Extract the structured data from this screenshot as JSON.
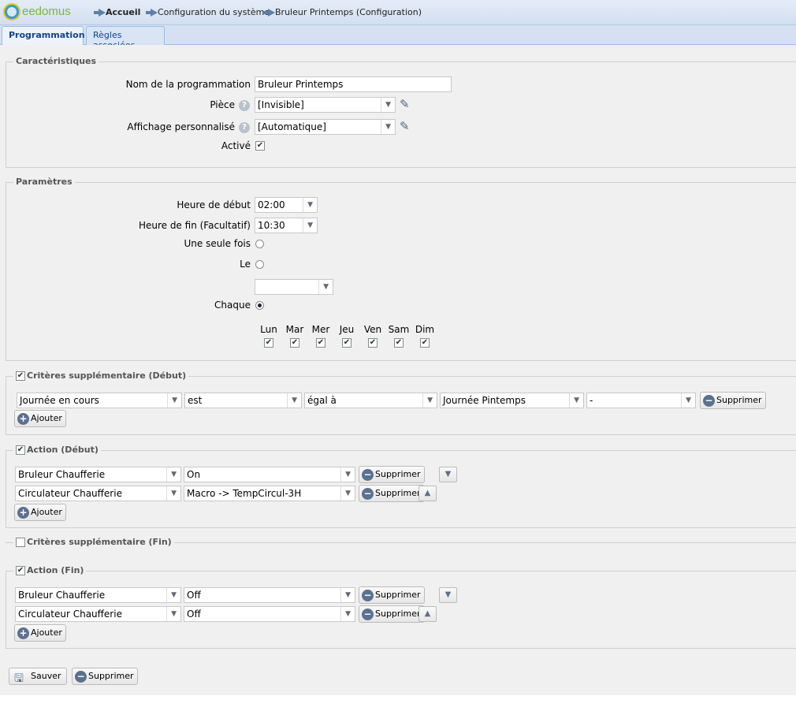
{
  "header": {
    "brand": "eedomus",
    "breadcrumb": [
      "Accueil",
      "Configuration du système",
      "Bruleur Printemps (Configuration)"
    ]
  },
  "tabs": [
    {
      "label": "Programmation",
      "active": true
    },
    {
      "label": "Règles associées",
      "active": false
    }
  ],
  "caracteristiques": {
    "legend": "Caractéristiques",
    "nom_label": "Nom de la programmation",
    "nom_value": "Bruleur Printemps",
    "piece_label": "Pièce",
    "piece_value": "[Invisible]",
    "affichage_label": "Affichage personnalisé",
    "affichage_value": "[Automatique]",
    "active_label": "Activé",
    "active_checked": true
  },
  "parametres": {
    "legend": "Paramètres",
    "debut_label": "Heure de début",
    "debut_value": "02:00",
    "fin_label": "Heure de fin (Facultatif)",
    "fin_value": "10:30",
    "once_label": "Une seule fois",
    "le_label": "Le",
    "le_value": "",
    "chaque_label": "Chaque",
    "selected_mode": "Chaque",
    "days": [
      {
        "label": "Lun",
        "checked": true
      },
      {
        "label": "Mar",
        "checked": true
      },
      {
        "label": "Mer",
        "checked": true
      },
      {
        "label": "Jeu",
        "checked": true
      },
      {
        "label": "Ven",
        "checked": true
      },
      {
        "label": "Sam",
        "checked": true
      },
      {
        "label": "Dim",
        "checked": true
      }
    ]
  },
  "criteres_debut": {
    "legend": "Critères supplémentaire (Début)",
    "checked": true,
    "row": [
      "Journée en cours",
      "est",
      "égal à",
      "Journée Pintemps",
      "-"
    ],
    "delete": "Supprimer",
    "add": "Ajouter"
  },
  "action_debut": {
    "legend": "Action (Début)",
    "checked": true,
    "rows": [
      [
        "Bruleur Chaufferie",
        "On"
      ],
      [
        "Circulateur Chaufferie",
        "Macro -> TempCircul-3H"
      ]
    ],
    "delete": "Supprimer",
    "add": "Ajouter"
  },
  "criteres_fin": {
    "legend": "Critères supplémentaire (Fin)",
    "checked": false
  },
  "action_fin": {
    "legend": "Action (Fin)",
    "checked": true,
    "rows": [
      [
        "Bruleur Chaufferie",
        "Off"
      ],
      [
        "Circulateur Chaufferie",
        "Off"
      ]
    ],
    "delete": "Supprimer",
    "add": "Ajouter"
  },
  "footer": {
    "save": "Sauver",
    "delete": "Supprimer"
  },
  "colors": {
    "accent": "#15428b",
    "header_bg": "#d5e1f2",
    "icon": "#5c708f"
  }
}
